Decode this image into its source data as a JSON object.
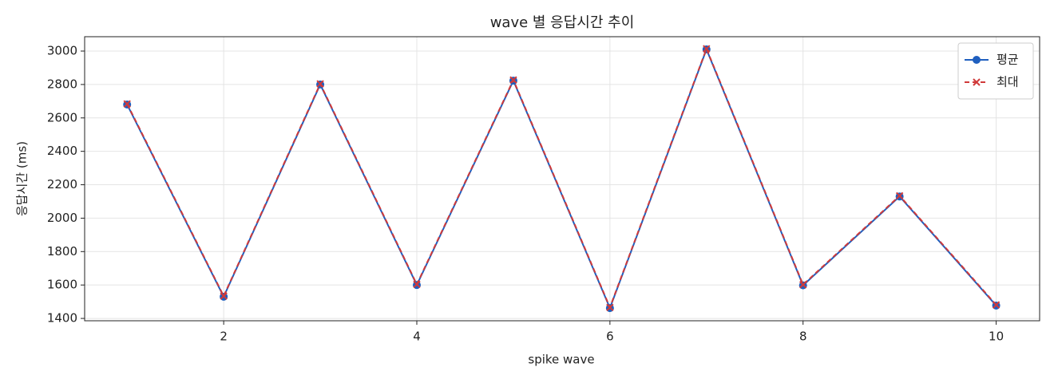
{
  "chart_data": {
    "type": "line",
    "title": "wave 별 응답시간 추이",
    "xlabel": "spike wave",
    "ylabel": "응답시간 (ms)",
    "x": [
      1,
      2,
      3,
      4,
      5,
      6,
      7,
      8,
      9,
      10
    ],
    "series": [
      {
        "name": "평균",
        "color": "#1f5fbf",
        "marker": "o",
        "dash": false,
        "values": [
          2680,
          1530,
          2800,
          1600,
          2823,
          1462,
          3010,
          1598,
          2130,
          1477
        ]
      },
      {
        "name": "최대",
        "color": "#d03a3a",
        "marker": "x",
        "dash": true,
        "values": [
          2684,
          1534,
          2804,
          1604,
          2827,
          1466,
          3014,
          1602,
          2134,
          1481
        ]
      }
    ],
    "xlim": [
      0.56,
      10.45
    ],
    "ylim": [
      1386,
      3086
    ],
    "xticks": [
      2,
      4,
      6,
      8,
      10
    ],
    "yticks": [
      1400,
      1600,
      1800,
      2000,
      2200,
      2400,
      2600,
      2800,
      3000
    ],
    "grid": true,
    "legend": "upper right"
  }
}
